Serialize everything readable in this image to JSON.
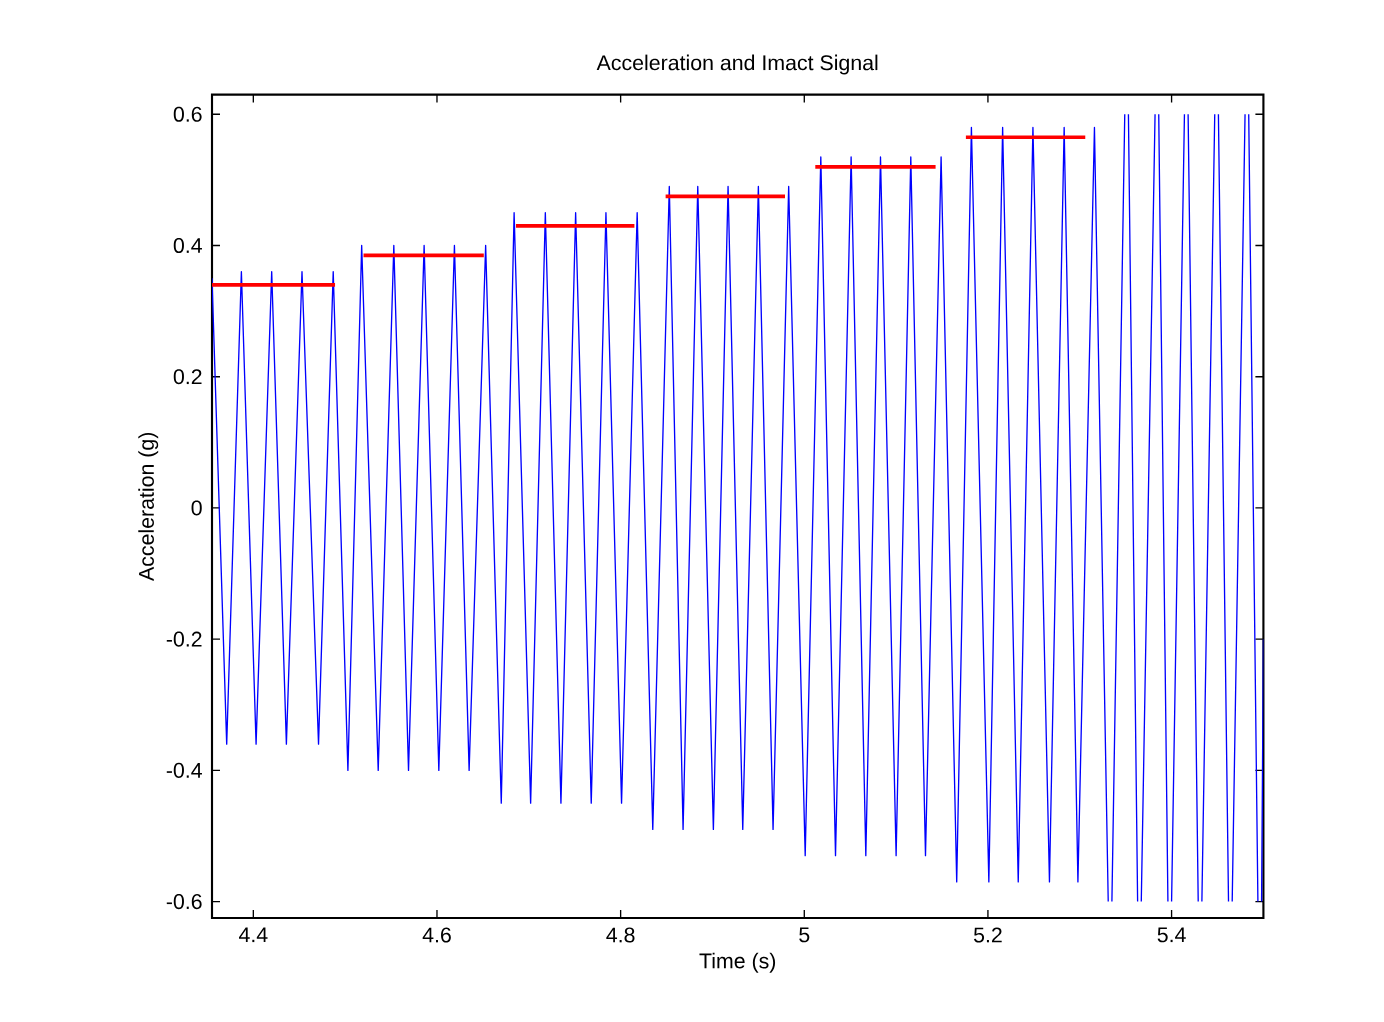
{
  "chart_data": {
    "type": "line",
    "title": "Acceleration and Imact Signal",
    "xlabel": "Time (s)",
    "ylabel": "Acceleration (g)",
    "xlim": [
      4.355,
      5.5
    ],
    "ylim": [
      -0.625,
      0.63
    ],
    "xticks": [
      4.4,
      4.6,
      4.8,
      5,
      5.2,
      5.4
    ],
    "yticks": [
      -0.6,
      -0.4,
      -0.2,
      0,
      0.2,
      0.4,
      0.6
    ],
    "series": [
      {
        "color": "#0000ff",
        "x": [
          4.355,
          4.371,
          4.387,
          4.403,
          4.42,
          4.436,
          4.453,
          4.471,
          4.487,
          4.503,
          4.518,
          4.536,
          4.553,
          4.569,
          4.586,
          4.602,
          4.619,
          4.635,
          4.653,
          4.67,
          4.684,
          4.702,
          4.718,
          4.735,
          4.751,
          4.768,
          4.784,
          4.801,
          4.818,
          4.835,
          4.853,
          4.868,
          4.884,
          4.901,
          4.917,
          4.933,
          4.95,
          4.966,
          4.983,
          5.001,
          5.018,
          5.034,
          5.051,
          5.067,
          5.083,
          5.1,
          5.116,
          5.132,
          5.149,
          5.166,
          5.182,
          5.201,
          5.216,
          5.233,
          5.249,
          5.267,
          5.283,
          5.298,
          5.316,
          5.331,
          5.333,
          5.335,
          5.349,
          5.351,
          5.353,
          5.363,
          5.365,
          5.367,
          5.382,
          5.384,
          5.386,
          5.396,
          5.398,
          5.4,
          5.414,
          5.416,
          5.418,
          5.429,
          5.431,
          5.433,
          5.447,
          5.449,
          5.451,
          5.462,
          5.464,
          5.466,
          5.48,
          5.482,
          5.484,
          5.494,
          5.496,
          5.498,
          5.5
        ],
        "values": [
          0.35,
          -0.36,
          0.36,
          -0.36,
          0.36,
          -0.36,
          0.36,
          -0.36,
          0.36,
          -0.4,
          0.4,
          -0.4,
          0.4,
          -0.4,
          0.4,
          -0.4,
          0.4,
          -0.4,
          0.4,
          -0.45,
          0.45,
          -0.45,
          0.45,
          -0.45,
          0.45,
          -0.45,
          0.45,
          -0.45,
          0.45,
          -0.49,
          0.49,
          -0.49,
          0.49,
          -0.49,
          0.49,
          -0.49,
          0.49,
          -0.49,
          0.49,
          -0.53,
          0.535,
          -0.53,
          0.535,
          -0.53,
          0.535,
          -0.53,
          0.535,
          -0.53,
          0.535,
          -0.57,
          0.58,
          -0.57,
          0.58,
          -0.57,
          0.58,
          -0.57,
          0.58,
          -0.57,
          0.58,
          -0.6,
          null,
          -0.6,
          0.6,
          null,
          0.6,
          -0.6,
          null,
          -0.6,
          0.6,
          null,
          0.6,
          -0.6,
          null,
          -0.6,
          0.6,
          null,
          0.6,
          -0.6,
          null,
          -0.6,
          0.6,
          null,
          0.6,
          -0.6,
          null,
          -0.6,
          0.6,
          null,
          0.6,
          -0.6,
          null,
          -0.6,
          -0.2
        ]
      },
      {
        "color": "#ff0000",
        "x": [
          4.355,
          4.489
        ],
        "values": [
          0.34,
          0.34
        ]
      },
      {
        "color": "#ff0000",
        "x": [
          4.52,
          4.651
        ],
        "values": [
          0.385,
          0.385
        ]
      },
      {
        "color": "#ff0000",
        "x": [
          4.686,
          4.815
        ],
        "values": [
          0.43,
          0.43
        ]
      },
      {
        "color": "#ff0000",
        "x": [
          4.849,
          4.979
        ],
        "values": [
          0.475,
          0.475
        ]
      },
      {
        "color": "#ff0000",
        "x": [
          5.012,
          5.143
        ],
        "values": [
          0.52,
          0.52
        ]
      },
      {
        "color": "#ff0000",
        "x": [
          5.176,
          5.306
        ],
        "values": [
          0.565,
          0.565
        ]
      }
    ]
  }
}
